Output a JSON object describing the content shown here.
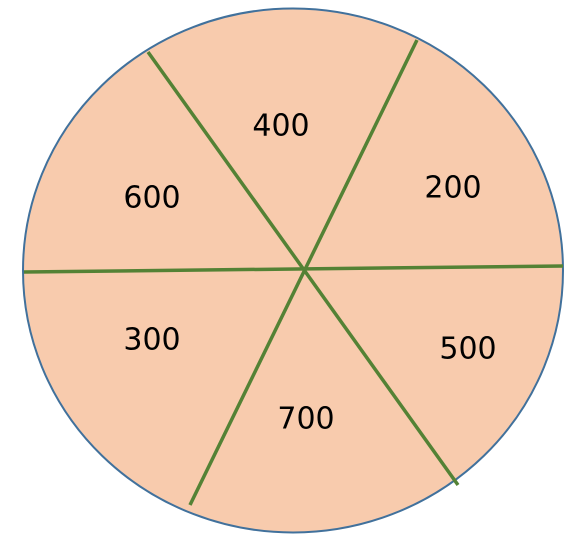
{
  "sectors": [
    {
      "label": 400
    },
    {
      "label": 200
    },
    {
      "label": 500
    },
    {
      "label": 700
    },
    {
      "label": 300
    },
    {
      "label": 600
    }
  ]
}
